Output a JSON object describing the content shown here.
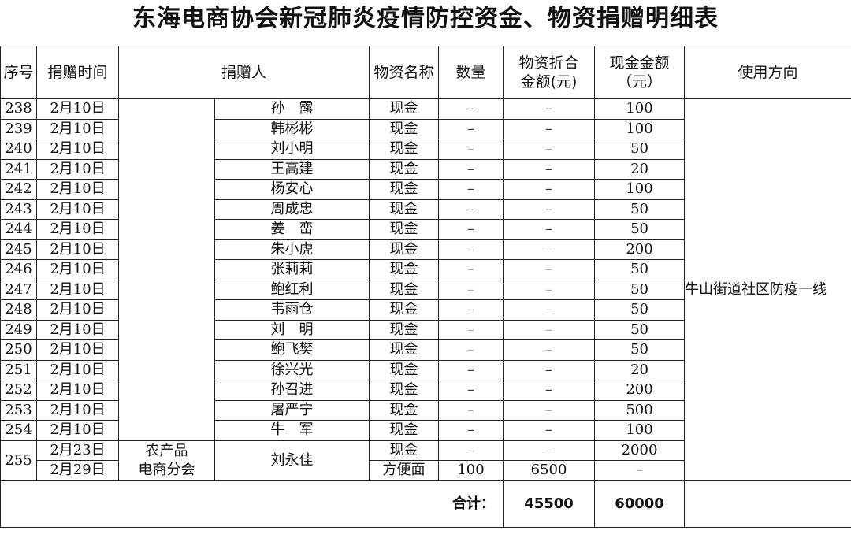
{
  "title": "东海电商协会新冠肺炎疫情防控资金、物资捐赠明细表",
  "headers": {
    "no": "序号",
    "time": "捐赠时间",
    "donor": "捐赠人",
    "item": "物资名称",
    "qty": "数量",
    "value": "物资折合金额(元)",
    "cash": "现金金额（元）",
    "usage": "使用方向"
  },
  "rows": [
    {
      "no": "238",
      "date": "2月10日",
      "name": "孙　露",
      "item": "现金",
      "qty": "–",
      "value": "–",
      "cash": "100",
      "light": false
    },
    {
      "no": "239",
      "date": "2月10日",
      "name": "韩彬彬",
      "item": "现金",
      "qty": "–",
      "value": "–",
      "cash": "100",
      "light": false
    },
    {
      "no": "240",
      "date": "2月10日",
      "name": "刘小明",
      "item": "现金",
      "qty": "–",
      "value": "–",
      "cash": "50",
      "light": true
    },
    {
      "no": "241",
      "date": "2月10日",
      "name": "王高建",
      "item": "现金",
      "qty": "–",
      "value": "–",
      "cash": "20",
      "light": false
    },
    {
      "no": "242",
      "date": "2月10日",
      "name": "杨安心",
      "item": "现金",
      "qty": "–",
      "value": "–",
      "cash": "100",
      "light": false
    },
    {
      "no": "243",
      "date": "2月10日",
      "name": "周成忠",
      "item": "现金",
      "qty": "–",
      "value": "–",
      "cash": "50",
      "light": false
    },
    {
      "no": "244",
      "date": "2月10日",
      "name": "姜　峦",
      "item": "现金",
      "qty": "–",
      "value": "–",
      "cash": "50",
      "light": false
    },
    {
      "no": "245",
      "date": "2月10日",
      "name": "朱小虎",
      "item": "现金",
      "qty": "–",
      "value": "–",
      "cash": "200",
      "light": true
    },
    {
      "no": "246",
      "date": "2月10日",
      "name": "张莉莉",
      "item": "现金",
      "qty": "–",
      "value": "–",
      "cash": "50",
      "light": true
    },
    {
      "no": "247",
      "date": "2月10日",
      "name": "鲍红利",
      "item": "现金",
      "qty": "–",
      "value": "–",
      "cash": "50",
      "light": true
    },
    {
      "no": "248",
      "date": "2月10日",
      "name": "韦雨仓",
      "item": "现金",
      "qty": "–",
      "value": "–",
      "cash": "50",
      "light": true
    },
    {
      "no": "249",
      "date": "2月10日",
      "name": "刘　明",
      "item": "现金",
      "qty": "–",
      "value": "–",
      "cash": "50",
      "light": true
    },
    {
      "no": "250",
      "date": "2月10日",
      "name": "鲍飞樊",
      "item": "现金",
      "qty": "–",
      "value": "–",
      "cash": "50",
      "light": true
    },
    {
      "no": "251",
      "date": "2月10日",
      "name": "徐兴光",
      "item": "现金",
      "qty": "–",
      "value": "–",
      "cash": "20",
      "light": false
    },
    {
      "no": "252",
      "date": "2月10日",
      "name": "孙召进",
      "item": "现金",
      "qty": "–",
      "value": "–",
      "cash": "200",
      "light": false
    },
    {
      "no": "253",
      "date": "2月10日",
      "name": "屠严宁",
      "item": "现金",
      "qty": "–",
      "value": "–",
      "cash": "500",
      "light": true
    },
    {
      "no": "254",
      "date": "2月10日",
      "name": "牛　军",
      "item": "现金",
      "qty": "–",
      "value": "–",
      "cash": "100",
      "light": false
    }
  ],
  "last": {
    "no": "255",
    "org1": "农产品",
    "org2": "电商分会",
    "name": "刘永佳",
    "a": {
      "date": "2月23日",
      "item": "现金",
      "qty": "–",
      "value": "–",
      "cash": "2000"
    },
    "b": {
      "date": "2月29日",
      "item": "方便面",
      "qty": "100",
      "value": "6500",
      "cash": "–"
    }
  },
  "usage": "牛山街道社区防疫一线",
  "total": {
    "label": "合计：",
    "value": "45500",
    "cash": "60000"
  }
}
